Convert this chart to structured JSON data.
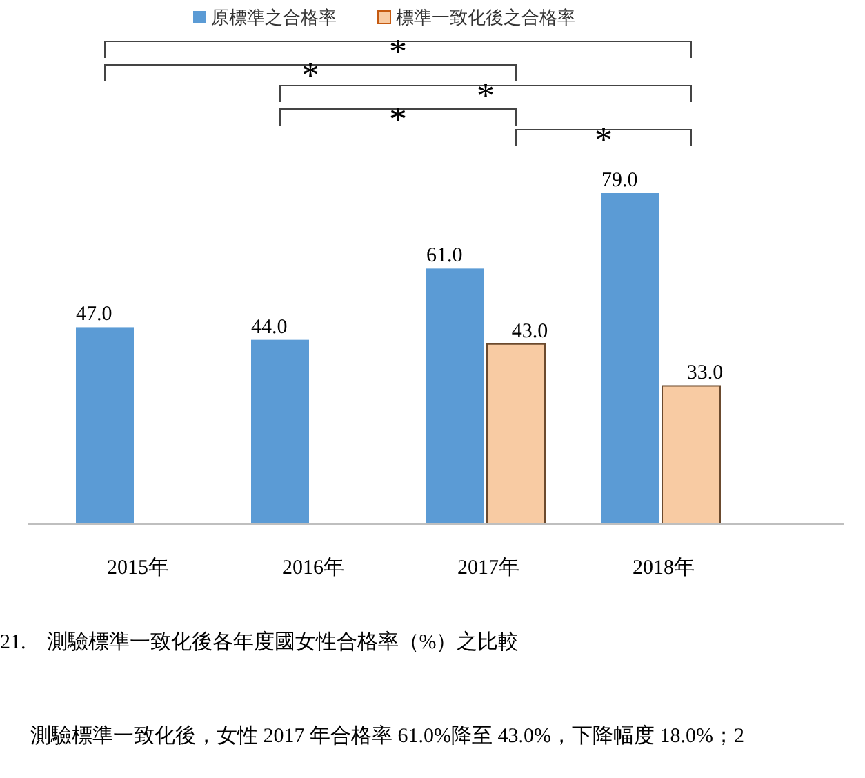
{
  "chart_data": {
    "type": "bar",
    "categories": [
      "2015年",
      "2016年",
      "2017年",
      "2018年"
    ],
    "series": [
      {
        "name": "原標準之合格率",
        "color": "#5b9bd5",
        "values": [
          47.0,
          44.0,
          61.0,
          79.0
        ],
        "value_labels": [
          "47.0",
          "44.0",
          "61.0",
          "79.0"
        ]
      },
      {
        "name": "標準一致化後之合格率",
        "color": "#f8cba3",
        "values": [
          null,
          null,
          43.0,
          33.0
        ],
        "value_labels": [
          null,
          null,
          "43.0",
          "33.0"
        ]
      }
    ],
    "legend": "top",
    "annotations": [
      "*",
      "*",
      "*",
      "*",
      "*",
      "21.　測驗標準一致化後各年度國女性合格率（%）之比較",
      "測驗標準一致化後，女性 2017 年合格率 61.0%降至 43.0%，下降幅度 18.0%；2"
    ]
  }
}
